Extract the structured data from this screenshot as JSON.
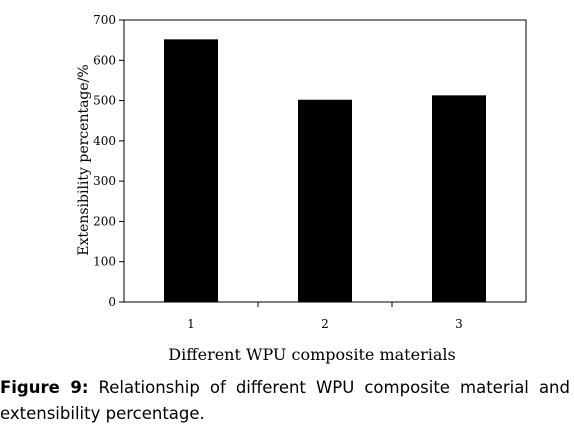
{
  "chart_data": {
    "type": "bar",
    "categories": [
      "1",
      "2",
      "3"
    ],
    "values": [
      652,
      502,
      513
    ],
    "xlabel": "Different WPU composite materials",
    "ylabel": "Extensibility percentage/%",
    "ylim": [
      0,
      700
    ],
    "yticks": [
      "0",
      "100",
      "200",
      "300",
      "400",
      "500",
      "600",
      "700"
    ],
    "bar_color": "#000000",
    "grid": false,
    "legend": "none"
  },
  "caption": {
    "label": "Figure 9:",
    "text": " Relationship of different WPU composite material and extensibility percentage."
  }
}
